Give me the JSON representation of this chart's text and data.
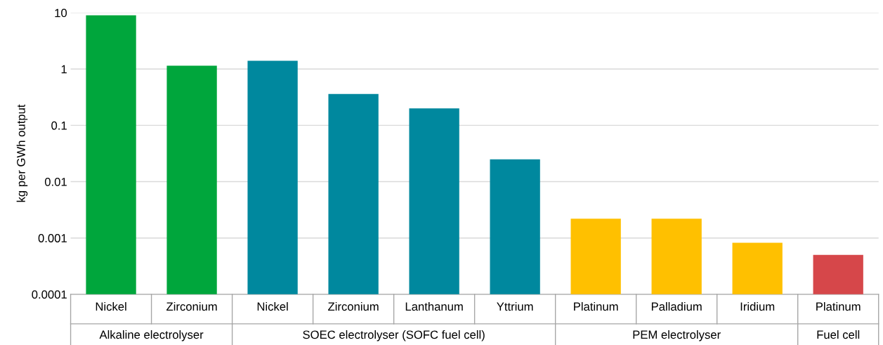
{
  "chart_data": {
    "type": "bar",
    "ylabel": "kg per GWh output",
    "categories": [
      "Nickel",
      "Zirconium",
      "Nickel",
      "Zirconium",
      "Lanthanum",
      "Yttrium",
      "Platinum",
      "Palladium",
      "Iridium",
      "Platinum"
    ],
    "values": [
      9,
      1.15,
      1.4,
      0.36,
      0.2,
      0.025,
      0.0022,
      0.0022,
      0.00082,
      0.0005
    ],
    "colors": [
      "#00a63c",
      "#00a63c",
      "#00889e",
      "#00889e",
      "#00889e",
      "#00889e",
      "#ffc000",
      "#ffc000",
      "#ffc000",
      "#d6474a"
    ],
    "annotations": [
      "Alkaline electrolyser",
      "SOEC electrolyser (SOFC fuel cell)",
      "PEM electrolyser",
      "Fuel cell"
    ],
    "log": true,
    "ylim": [
      0.0001,
      10
    ],
    "yticks": [
      0.0001,
      0.001,
      0.01,
      0.1,
      1,
      10
    ],
    "grid": "y",
    "legend": false
  }
}
